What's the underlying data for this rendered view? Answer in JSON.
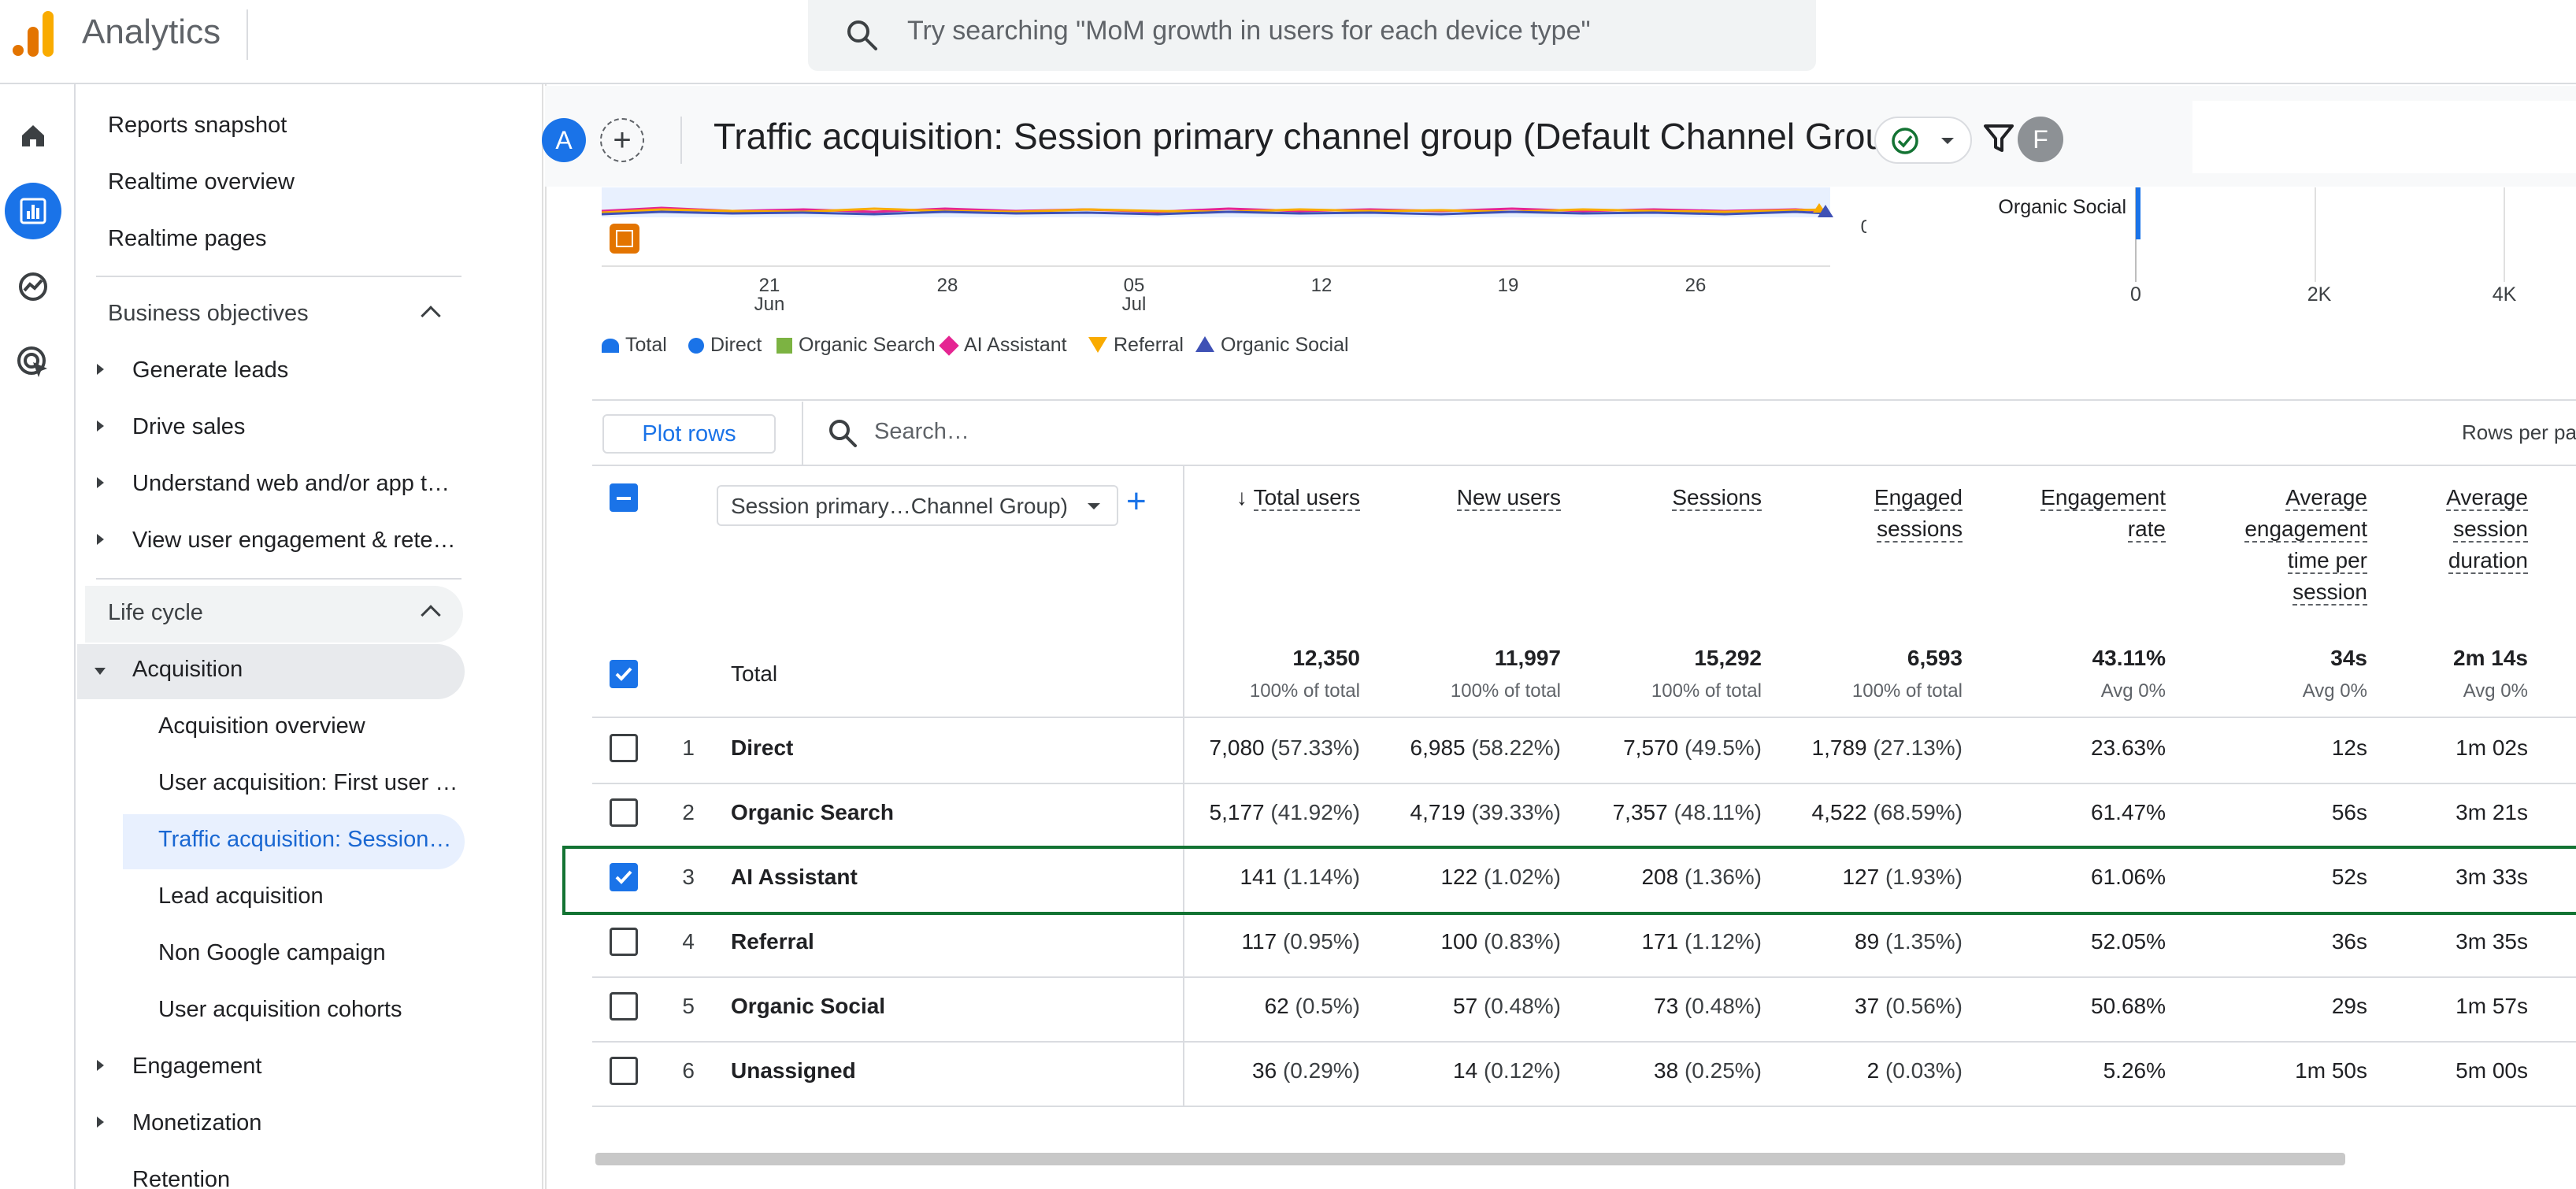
{
  "app": {
    "product": "Analytics",
    "search_placeholder": "Try searching \"MoM growth in users for each device type\""
  },
  "nav": {
    "top_items": [
      "Reports snapshot",
      "Realtime overview",
      "Realtime pages"
    ],
    "business_objectives": {
      "label": "Business objectives",
      "items": [
        "Generate leads",
        "Drive sales",
        "Understand web and/or app t…",
        "View user engagement & rete…"
      ]
    },
    "life_cycle": {
      "label": "Life cycle",
      "acquisition": "Acquisition",
      "acquisition_items": [
        "Acquisition overview",
        "User acquisition: First user …",
        "Traffic acquisition: Session…",
        "Lead acquisition",
        "Non Google campaign",
        "User acquisition cohorts"
      ],
      "after_items": [
        "Engagement",
        "Monetization",
        "Retention"
      ]
    }
  },
  "header": {
    "avatar_a": "A",
    "avatar_f": "F",
    "title": "Traffic acquisition: Session primary channel group (Default Channel Group)"
  },
  "colors": {
    "accent": "#1a73e8",
    "highlight": "#137333",
    "direct": "#1a73e8",
    "organic_search": "#7cb342",
    "ai_assistant": "#e52592",
    "referral": "#f9ab00",
    "organic_social": "#3f51b5"
  },
  "chart_data": [
    {
      "type": "line",
      "x_ticks": [
        {
          "day": "21",
          "month": "Jun"
        },
        {
          "day": "28",
          "month": ""
        },
        {
          "day": "05",
          "month": "Jul"
        },
        {
          "day": "12",
          "month": ""
        },
        {
          "day": "19",
          "month": ""
        },
        {
          "day": "26",
          "month": ""
        }
      ],
      "y_tick": "0",
      "legend": [
        "Total",
        "Direct",
        "Organic Search",
        "AI Assistant",
        "Referral",
        "Organic Social"
      ]
    },
    {
      "type": "bar",
      "categories": [
        "Organic Social"
      ],
      "values": [
        62
      ],
      "x_ticks": [
        "0",
        "2K",
        "4K"
      ]
    }
  ],
  "table": {
    "plot_rows": "Plot rows",
    "search_placeholder": "Search…",
    "rows_per_page": "Rows per pa",
    "dimension": "Session primary…Channel Group)",
    "columns": [
      [
        "Total users"
      ],
      [
        "New users"
      ],
      [
        "Sessions"
      ],
      [
        "Engaged",
        "sessions"
      ],
      [
        "Engagement",
        "rate"
      ],
      [
        "Average",
        "engagement",
        "time per",
        "session"
      ],
      [
        "Average",
        "session",
        "duration"
      ]
    ],
    "total_label": "Total",
    "totals": [
      {
        "value": "12,350",
        "sub": "100% of total"
      },
      {
        "value": "11,997",
        "sub": "100% of total"
      },
      {
        "value": "15,292",
        "sub": "100% of total"
      },
      {
        "value": "6,593",
        "sub": "100% of total"
      },
      {
        "value": "43.11%",
        "sub": "Avg 0%"
      },
      {
        "value": "34s",
        "sub": "Avg 0%"
      },
      {
        "value": "2m 14s",
        "sub": "Avg 0%"
      }
    ],
    "rows": [
      {
        "n": "1",
        "name": "Direct",
        "checked": false,
        "cells": [
          [
            "7,080",
            "(57.33%)"
          ],
          [
            "6,985",
            "(58.22%)"
          ],
          [
            "7,570",
            "(49.5%)"
          ],
          [
            "1,789",
            "(27.13%)"
          ],
          [
            "23.63%",
            ""
          ],
          [
            "12s",
            ""
          ],
          [
            "1m 02s",
            ""
          ]
        ]
      },
      {
        "n": "2",
        "name": "Organic Search",
        "checked": false,
        "cells": [
          [
            "5,177",
            "(41.92%)"
          ],
          [
            "4,719",
            "(39.33%)"
          ],
          [
            "7,357",
            "(48.11%)"
          ],
          [
            "4,522",
            "(68.59%)"
          ],
          [
            "61.47%",
            ""
          ],
          [
            "56s",
            ""
          ],
          [
            "3m 21s",
            ""
          ]
        ]
      },
      {
        "n": "3",
        "name": "AI Assistant",
        "checked": true,
        "cells": [
          [
            "141",
            "(1.14%)"
          ],
          [
            "122",
            "(1.02%)"
          ],
          [
            "208",
            "(1.36%)"
          ],
          [
            "127",
            "(1.93%)"
          ],
          [
            "61.06%",
            ""
          ],
          [
            "52s",
            ""
          ],
          [
            "3m 33s",
            ""
          ]
        ]
      },
      {
        "n": "4",
        "name": "Referral",
        "checked": false,
        "cells": [
          [
            "117",
            "(0.95%)"
          ],
          [
            "100",
            "(0.83%)"
          ],
          [
            "171",
            "(1.12%)"
          ],
          [
            "89",
            "(1.35%)"
          ],
          [
            "52.05%",
            ""
          ],
          [
            "36s",
            ""
          ],
          [
            "3m 35s",
            ""
          ]
        ]
      },
      {
        "n": "5",
        "name": "Organic Social",
        "checked": false,
        "cells": [
          [
            "62",
            "(0.5%)"
          ],
          [
            "57",
            "(0.48%)"
          ],
          [
            "73",
            "(0.48%)"
          ],
          [
            "37",
            "(0.56%)"
          ],
          [
            "50.68%",
            ""
          ],
          [
            "29s",
            ""
          ],
          [
            "1m 57s",
            ""
          ]
        ]
      },
      {
        "n": "6",
        "name": "Unassigned",
        "checked": false,
        "cells": [
          [
            "36",
            "(0.29%)"
          ],
          [
            "14",
            "(0.12%)"
          ],
          [
            "38",
            "(0.25%)"
          ],
          [
            "2",
            "(0.03%)"
          ],
          [
            "5.26%",
            ""
          ],
          [
            "1m 50s",
            ""
          ],
          [
            "5m 00s",
            ""
          ]
        ]
      }
    ]
  }
}
